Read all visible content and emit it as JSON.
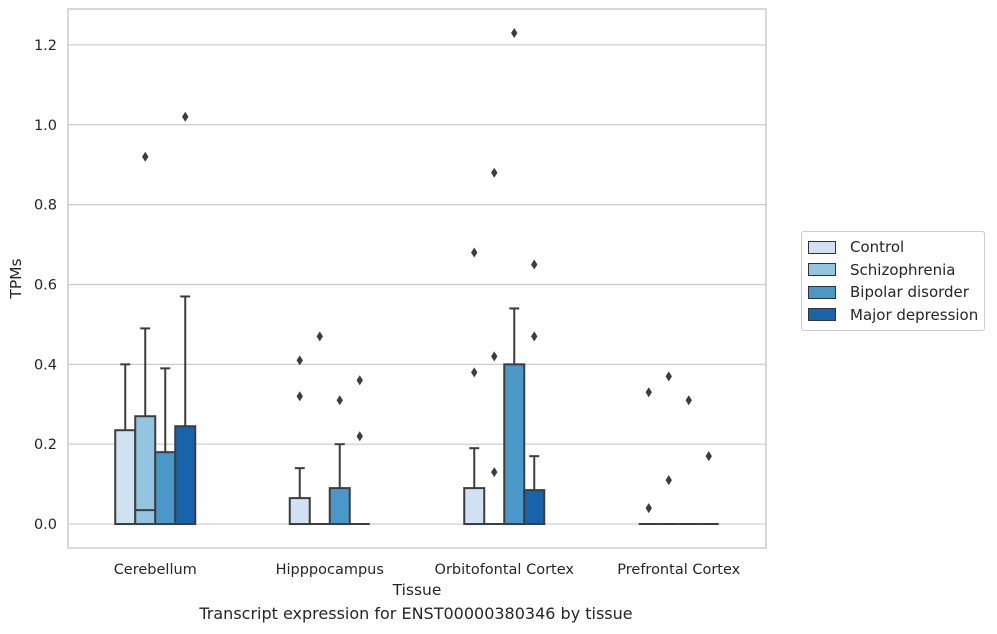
{
  "chart_data": {
    "type": "boxplot",
    "title": "",
    "caption": "Transcript expression for ENST00000380346 by tissue",
    "xlabel": "Tissue",
    "ylabel": "TPMs",
    "ylim": [
      -0.06,
      1.29
    ],
    "yticks": [
      "0.0",
      "0.2",
      "0.4",
      "0.6",
      "0.8",
      "1.0",
      "1.2"
    ],
    "categories": [
      "Cerebellum",
      "Hipppocampus",
      "Orbitofontal Cortex",
      "Prefrontal Cortex"
    ],
    "grid": true,
    "legend_position": "right",
    "series": [
      {
        "name": "Control",
        "color": "#d0e1f2",
        "boxes": [
          {
            "q1": 0,
            "median": 0,
            "q3": 0.235,
            "whisker_low": 0,
            "whisker_high": 0.4,
            "outliers": []
          },
          {
            "q1": 0,
            "median": 0,
            "q3": 0.065,
            "whisker_low": 0,
            "whisker_high": 0.14,
            "outliers": [
              0.32,
              0.41
            ]
          },
          {
            "q1": 0,
            "median": 0,
            "q3": 0.09,
            "whisker_low": 0,
            "whisker_high": 0.19,
            "outliers": [
              0.38,
              0.68
            ]
          },
          {
            "q1": 0,
            "median": 0,
            "q3": 0,
            "whisker_low": 0,
            "whisker_high": 0,
            "outliers": [
              0.04,
              0.33
            ]
          }
        ]
      },
      {
        "name": "Schizophrenia",
        "color": "#94c4df",
        "boxes": [
          {
            "q1": 0,
            "median": 0.035,
            "q3": 0.27,
            "whisker_low": 0,
            "whisker_high": 0.49,
            "outliers": [
              0.92
            ]
          },
          {
            "q1": 0,
            "median": 0,
            "q3": 0,
            "whisker_low": 0,
            "whisker_high": 0,
            "outliers": [
              0.47
            ]
          },
          {
            "q1": 0,
            "median": 0,
            "q3": 0,
            "whisker_low": 0,
            "whisker_high": 0,
            "outliers": [
              0.13,
              0.42,
              0.88
            ]
          },
          {
            "q1": 0,
            "median": 0,
            "q3": 0,
            "whisker_low": 0,
            "whisker_high": 0,
            "outliers": [
              0.11,
              0.37
            ]
          }
        ]
      },
      {
        "name": "Bipolar disorder",
        "color": "#4a98c9",
        "boxes": [
          {
            "q1": 0,
            "median": 0,
            "q3": 0.18,
            "whisker_low": 0,
            "whisker_high": 0.39,
            "outliers": []
          },
          {
            "q1": 0,
            "median": 0,
            "q3": 0.09,
            "whisker_low": 0,
            "whisker_high": 0.2,
            "outliers": [
              0.31
            ]
          },
          {
            "q1": 0,
            "median": 0,
            "q3": 0.4,
            "whisker_low": 0,
            "whisker_high": 0.54,
            "outliers": [
              1.23
            ]
          },
          {
            "q1": 0,
            "median": 0,
            "q3": 0,
            "whisker_low": 0,
            "whisker_high": 0,
            "outliers": [
              0.31
            ]
          }
        ]
      },
      {
        "name": "Major depression",
        "color": "#1764ab",
        "boxes": [
          {
            "q1": 0,
            "median": 0,
            "q3": 0.245,
            "whisker_low": 0,
            "whisker_high": 0.57,
            "outliers": [
              1.02
            ]
          },
          {
            "q1": 0,
            "median": 0,
            "q3": 0,
            "whisker_low": 0,
            "whisker_high": 0,
            "outliers": [
              0.22,
              0.36
            ]
          },
          {
            "q1": 0,
            "median": 0,
            "q3": 0.085,
            "whisker_low": 0,
            "whisker_high": 0.17,
            "outliers": [
              0.47,
              0.65
            ]
          },
          {
            "q1": 0,
            "median": 0,
            "q3": 0,
            "whisker_low": 0,
            "whisker_high": 0,
            "outliers": [
              0.17
            ]
          }
        ]
      }
    ]
  }
}
